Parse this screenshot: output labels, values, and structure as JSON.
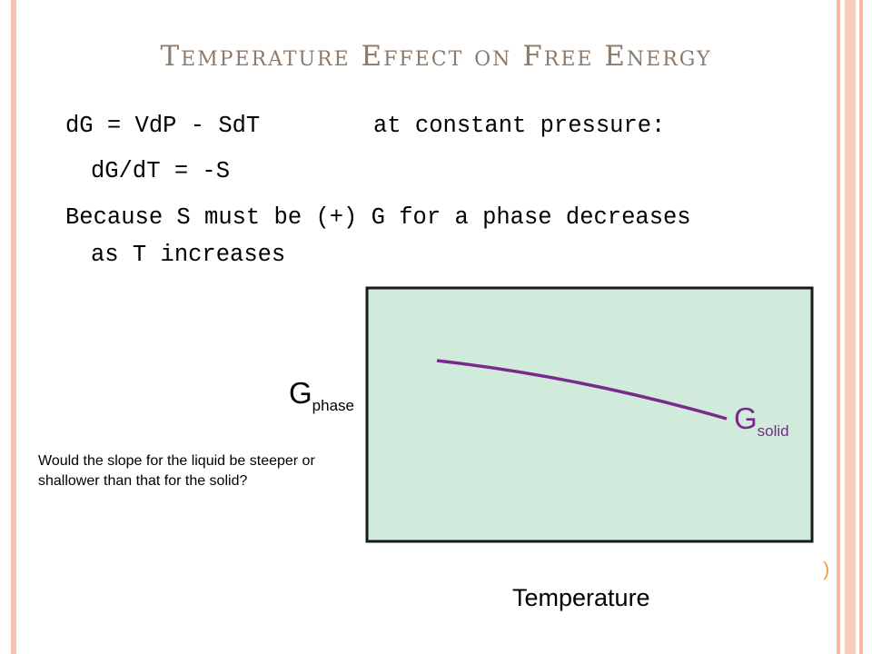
{
  "slide": {
    "title": "Temperature Effect on Free Energy",
    "line1_left": "dG = VdP - SdT",
    "line1_right": "at constant pressure:",
    "line2": "dG/dT = -S",
    "line3": "Because S must be (+) G for a phase decreases",
    "line4": "as T increases",
    "question": "Would the slope for the liquid be steeper or shallower than that for the solid?"
  },
  "diagram": {
    "fill_color": "#d0ebdc",
    "curve_color": "#7b2a8c",
    "y_label_main": "G",
    "y_label_sub": "phase",
    "curve_label_main": "G",
    "curve_label_sub": "solid",
    "x_label": "Temperature"
  }
}
